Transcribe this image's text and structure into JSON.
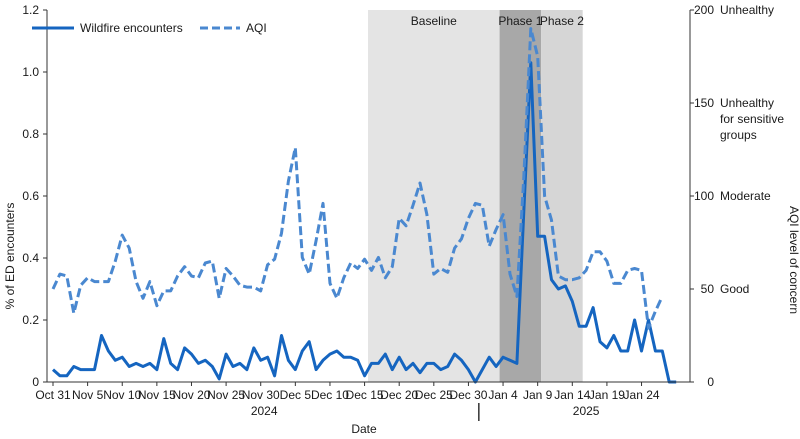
{
  "chart_data": {
    "type": "line",
    "colors": {
      "series": "#1565c0",
      "aqi": "#4a88d0",
      "baseline": "#e4e4e4",
      "phase1": "#a8a8a8",
      "phase2": "#d6d6d6"
    },
    "legend": {
      "position": "top-left",
      "wildfire_label": "Wildfire encounters",
      "aqi_label": "AQI"
    },
    "x": {
      "label": "Date",
      "start": "Oct 31",
      "num_days": 93
    },
    "x_ticks": [
      {
        "day": 0,
        "label": "Oct 31"
      },
      {
        "day": 5,
        "label": "Nov 5"
      },
      {
        "day": 10,
        "label": "Nov 10"
      },
      {
        "day": 15,
        "label": "Nov 15"
      },
      {
        "day": 20,
        "label": "Nov 20"
      },
      {
        "day": 25,
        "label": "Nov 25"
      },
      {
        "day": 30,
        "label": "Nov 30"
      },
      {
        "day": 35,
        "label": "Dec 5"
      },
      {
        "day": 40,
        "label": "Dec 10"
      },
      {
        "day": 45,
        "label": "Dec 15"
      },
      {
        "day": 50,
        "label": "Dec 20"
      },
      {
        "day": 55,
        "label": "Dec 25"
      },
      {
        "day": 60,
        "label": "Dec 30"
      },
      {
        "day": 65,
        "label": "Jan 4"
      },
      {
        "day": 70,
        "label": "Jan 9"
      },
      {
        "day": 75,
        "label": "Jan 14"
      },
      {
        "day": 80,
        "label": "Jan 19"
      },
      {
        "day": 85,
        "label": "Jan 24"
      }
    ],
    "years": [
      {
        "label": "2024",
        "center_day": 30.5
      },
      {
        "label": "2025",
        "center_day": 77
      },
      {
        "divider_day": 61.5
      }
    ],
    "y_left": {
      "label": "% of ED encounters",
      "min": 0,
      "max": 1.2,
      "ticks": [
        0,
        0.2,
        0.4,
        0.6,
        0.8,
        1.0,
        1.2
      ],
      "tick_labels": [
        "0",
        "0.2",
        "0.4",
        "0.6",
        "0.8",
        "1.0",
        "1.2"
      ]
    },
    "y_right": {
      "label": "AQI level of concern",
      "min": 0,
      "max": 200,
      "ticks": [
        {
          "value": 0,
          "number": "0",
          "category": ""
        },
        {
          "value": 50,
          "number": "50",
          "category": "Good"
        },
        {
          "value": 100,
          "number": "100",
          "category": "Moderate"
        },
        {
          "value": 150,
          "number": "150",
          "category": "Unhealthy",
          "extra": [
            "for sensitive",
            "groups"
          ]
        },
        {
          "value": 200,
          "number": "200",
          "category": "Unhealthy"
        }
      ]
    },
    "periods": [
      {
        "name": "Baseline",
        "start_day": 46,
        "end_day": 65,
        "kind": "baseline"
      },
      {
        "name": "Phase 1",
        "start_day": 65,
        "end_day": 71,
        "kind": "phase1"
      },
      {
        "name": "Phase 2",
        "start_day": 71,
        "end_day": 77,
        "kind": "phase2"
      }
    ],
    "series": [
      {
        "name": "Wildfire encounters",
        "axis": "left",
        "style": "solid",
        "values": [
          0.04,
          0.02,
          0.02,
          0.05,
          0.04,
          0.04,
          0.04,
          0.15,
          0.1,
          0.07,
          0.08,
          0.05,
          0.06,
          0.05,
          0.06,
          0.04,
          0.14,
          0.06,
          0.04,
          0.11,
          0.09,
          0.06,
          0.07,
          0.05,
          0.01,
          0.09,
          0.05,
          0.06,
          0.04,
          0.11,
          0.07,
          0.08,
          0.02,
          0.15,
          0.07,
          0.04,
          0.1,
          0.13,
          0.04,
          0.07,
          0.09,
          0.1,
          0.08,
          0.08,
          0.07,
          0.02,
          0.06,
          0.06,
          0.09,
          0.04,
          0.08,
          0.04,
          0.06,
          0.03,
          0.06,
          0.06,
          0.04,
          0.05,
          0.09,
          0.07,
          0.04,
          0.0,
          0.04,
          0.08,
          0.05,
          0.08,
          0.07,
          0.06,
          0.55,
          1.03,
          0.47,
          0.47,
          0.33,
          0.3,
          0.31,
          0.26,
          0.18,
          0.18,
          0.24,
          0.13,
          0.11,
          0.15,
          0.1,
          0.1,
          0.2,
          0.1,
          0.2,
          0.1,
          0.1,
          0.0,
          0.0
        ]
      },
      {
        "name": "AQI",
        "axis": "right",
        "style": "dashed",
        "values": [
          50,
          58,
          57,
          37,
          52,
          56,
          54,
          54,
          54,
          65,
          79,
          72,
          54,
          45,
          54,
          41,
          49,
          49,
          57,
          62,
          57,
          56,
          64,
          65,
          45,
          61,
          57,
          52,
          51,
          51,
          49,
          63,
          66,
          80,
          108,
          126,
          67,
          58,
          76,
          96,
          53,
          45,
          56,
          64,
          61,
          66,
          60,
          67,
          56,
          62,
          88,
          84,
          95,
          107,
          90,
          58,
          61,
          59,
          72,
          77,
          88,
          96,
          95,
          73,
          82,
          90,
          58,
          46,
          110,
          190,
          175,
          100,
          87,
          57,
          55,
          55,
          56,
          60,
          70,
          70,
          65,
          53,
          53,
          60,
          61,
          60,
          29,
          38,
          46
        ]
      }
    ]
  }
}
